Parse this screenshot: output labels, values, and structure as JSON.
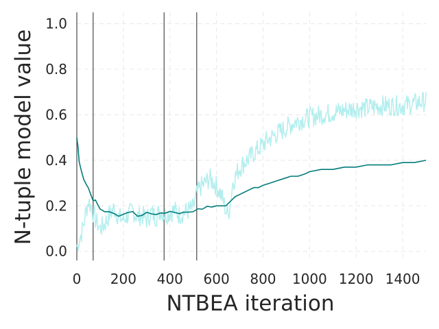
{
  "chart_data": {
    "type": "line",
    "title": "",
    "xlabel": "NTBEA iteration",
    "ylabel": "N-tuple model value",
    "xlim": [
      0,
      1500
    ],
    "ylim": [
      -0.04,
      1.05
    ],
    "xticks": [
      0,
      200,
      400,
      600,
      800,
      1000,
      1200,
      1400
    ],
    "yticks": [
      0.0,
      0.2,
      0.4,
      0.6,
      0.8,
      1.0
    ],
    "grid": true,
    "legend": "none",
    "vertical_lines": [
      0,
      70,
      375,
      515
    ],
    "series": [
      {
        "style": "noisy",
        "color": "#b3eeee",
        "x": [
          0,
          10,
          20,
          30,
          40,
          50,
          60,
          70,
          80,
          90,
          100,
          120,
          140,
          160,
          180,
          200,
          220,
          240,
          260,
          280,
          300,
          320,
          340,
          360,
          380,
          400,
          420,
          440,
          460,
          480,
          500,
          515,
          530,
          550,
          570,
          590,
          610,
          630,
          640,
          650,
          660,
          670,
          690,
          710,
          730,
          760,
          790,
          820,
          850,
          880,
          910,
          940,
          970,
          1000,
          1050,
          1100,
          1150,
          1200,
          1250,
          1300,
          1350,
          1400,
          1450,
          1500
        ],
        "values": [
          0.02,
          0.05,
          0.08,
          0.12,
          0.18,
          0.22,
          0.2,
          0.17,
          0.14,
          0.12,
          0.1,
          0.12,
          0.16,
          0.19,
          0.15,
          0.14,
          0.16,
          0.18,
          0.15,
          0.16,
          0.14,
          0.17,
          0.15,
          0.18,
          0.16,
          0.17,
          0.18,
          0.16,
          0.17,
          0.18,
          0.19,
          0.25,
          0.28,
          0.3,
          0.32,
          0.3,
          0.27,
          0.22,
          0.18,
          0.16,
          0.22,
          0.3,
          0.35,
          0.38,
          0.4,
          0.43,
          0.46,
          0.49,
          0.51,
          0.53,
          0.55,
          0.57,
          0.58,
          0.59,
          0.6,
          0.61,
          0.62,
          0.63,
          0.63,
          0.64,
          0.64,
          0.64,
          0.65,
          0.66
        ]
      },
      {
        "style": "smooth",
        "color": "#007b78",
        "x": [
          0,
          5,
          10,
          20,
          30,
          40,
          50,
          60,
          70,
          80,
          90,
          100,
          120,
          140,
          160,
          180,
          200,
          220,
          240,
          260,
          280,
          300,
          320,
          340,
          360,
          380,
          400,
          420,
          440,
          460,
          480,
          500,
          520,
          540,
          560,
          580,
          600,
          620,
          640,
          660,
          680,
          700,
          720,
          740,
          760,
          780,
          800,
          830,
          860,
          890,
          920,
          950,
          980,
          1000,
          1050,
          1100,
          1150,
          1200,
          1250,
          1300,
          1350,
          1400,
          1450,
          1500
        ],
        "values": [
          0.5,
          0.46,
          0.4,
          0.35,
          0.32,
          0.3,
          0.28,
          0.25,
          0.22,
          0.22,
          0.2,
          0.19,
          0.18,
          0.17,
          0.16,
          0.15,
          0.16,
          0.17,
          0.17,
          0.16,
          0.16,
          0.17,
          0.17,
          0.16,
          0.17,
          0.17,
          0.17,
          0.17,
          0.17,
          0.17,
          0.17,
          0.18,
          0.19,
          0.19,
          0.2,
          0.2,
          0.2,
          0.2,
          0.2,
          0.22,
          0.24,
          0.25,
          0.26,
          0.27,
          0.28,
          0.28,
          0.29,
          0.3,
          0.31,
          0.32,
          0.33,
          0.33,
          0.34,
          0.35,
          0.36,
          0.36,
          0.37,
          0.37,
          0.38,
          0.38,
          0.38,
          0.39,
          0.39,
          0.4
        ]
      }
    ]
  }
}
